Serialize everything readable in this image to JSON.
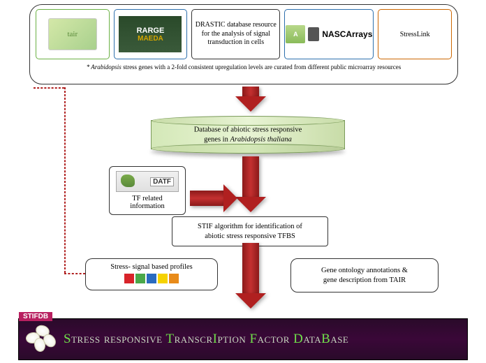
{
  "top": {
    "tair_label": "tair",
    "rarge_l1": "RARGE",
    "rarge_l2": "MAEDA",
    "drastic": "DRASTIC database resource for the analysis of signal transduction in cells",
    "nasc_badge": "A",
    "nasc_label": "NASCArrays",
    "stresslink": "StressLink",
    "caption": "* Arabidopsis stress genes with a 2-fold consistent upregulation levels are curated from different public microarray resources"
  },
  "db": {
    "l1": "Database of abiotic stress responsive",
    "l2": "genes in  Arabidopsis thaliana"
  },
  "tf": {
    "badge": "DATF",
    "l1": "TF related",
    "l2": "information"
  },
  "stif": {
    "l1": "STIF algorithm for identification of",
    "l2": "abiotic stress responsive TFBS"
  },
  "stress": {
    "label": "Stress- signal based profiles",
    "colors": [
      "#d8232a",
      "#4aa84a",
      "#2a6bbf",
      "#f5d200",
      "#e88b1a"
    ]
  },
  "go": {
    "l1": "Gene ontology annotations &",
    "l2": "gene description from TAIR"
  },
  "banner": {
    "tag": "STIFDB",
    "text_html": "<span style='color:#6fe04a'>S</span><span style='color:#c8d8c0'>tress responsive </span><span style='color:#6fe04a'>T</span><span style='color:#c8d8c0'>ranscr</span><span style='color:#6fe04a'>I</span><span style='color:#c8d8c0'>ption </span><span style='color:#6fe04a'>F</span><span style='color:#c8d8c0'>actor </span><span style='color:#6fe04a'>D</span><span style='color:#c8d8c0'>ata</span><span style='color:#6fe04a'>B</span><span style='color:#c8d8c0'>ase</span>"
  }
}
